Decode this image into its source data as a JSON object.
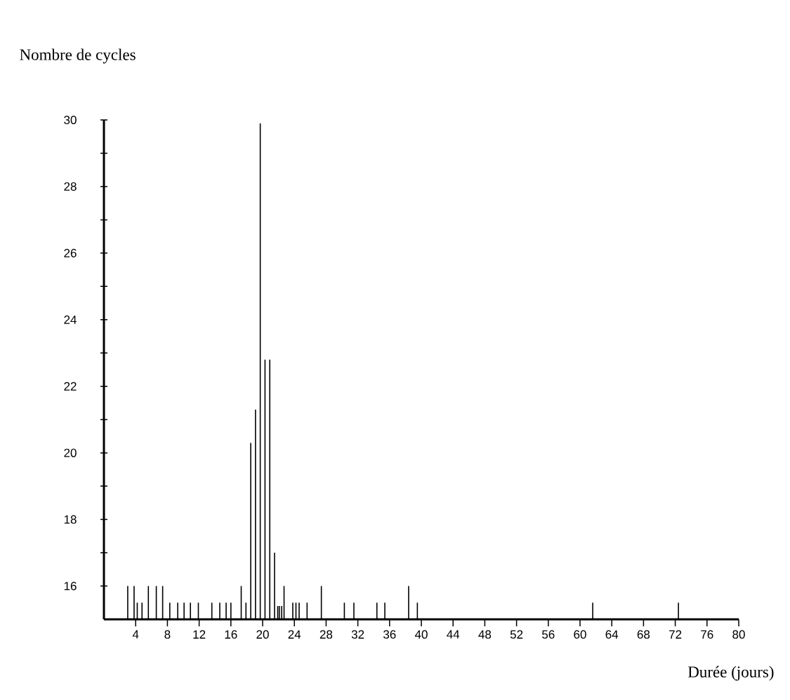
{
  "chart_data": {
    "type": "bar",
    "ylabel": "Nombre de cycles",
    "xlabel": "Durée (jours)",
    "color": "#000000",
    "x": [
      3.0,
      3.8,
      4.2,
      4.8,
      5.6,
      6.6,
      7.4,
      8.3,
      9.3,
      10.1,
      10.9,
      11.9,
      13.6,
      14.6,
      15.4,
      16.0,
      17.3,
      17.9,
      18.5,
      19.1,
      19.7,
      20.3,
      20.9,
      21.5,
      21.9,
      22.1,
      22.4,
      22.7,
      23.8,
      24.2,
      24.6,
      25.6,
      27.4,
      30.3,
      31.5,
      34.4,
      35.4,
      38.4,
      39.5,
      61.6,
      72.4
    ],
    "values": [
      16,
      16,
      15.5,
      15.5,
      16,
      16,
      16,
      15.5,
      15.5,
      15.5,
      15.5,
      15.5,
      15.5,
      15.5,
      15.5,
      15.5,
      16,
      15.5,
      20.3,
      21.3,
      29.9,
      22.8,
      22.8,
      17,
      15.4,
      15.4,
      15.4,
      16,
      15.5,
      15.5,
      15.5,
      15.5,
      16,
      15.5,
      15.5,
      15.5,
      15.5,
      16,
      15.5,
      15.5,
      15.5
    ],
    "xlim": [
      0,
      80
    ],
    "ylim": [
      15,
      30
    ],
    "xticks": [
      4,
      8,
      12,
      16,
      20,
      24,
      28,
      32,
      36,
      40,
      44,
      48,
      52,
      56,
      60,
      64,
      68,
      72,
      76,
      80
    ],
    "yticks": [
      16,
      {
        "value": 17,
        "label": null
      },
      18,
      {
        "value": 19,
        "label": null
      },
      20,
      {
        "value": 21,
        "label": null
      },
      22,
      {
        "value": 23,
        "label": null
      },
      24,
      {
        "value": 25,
        "label": null
      },
      26,
      {
        "value": 27,
        "label": null
      },
      28,
      {
        "value": 29,
        "label": null
      },
      30
    ],
    "grid": false
  }
}
